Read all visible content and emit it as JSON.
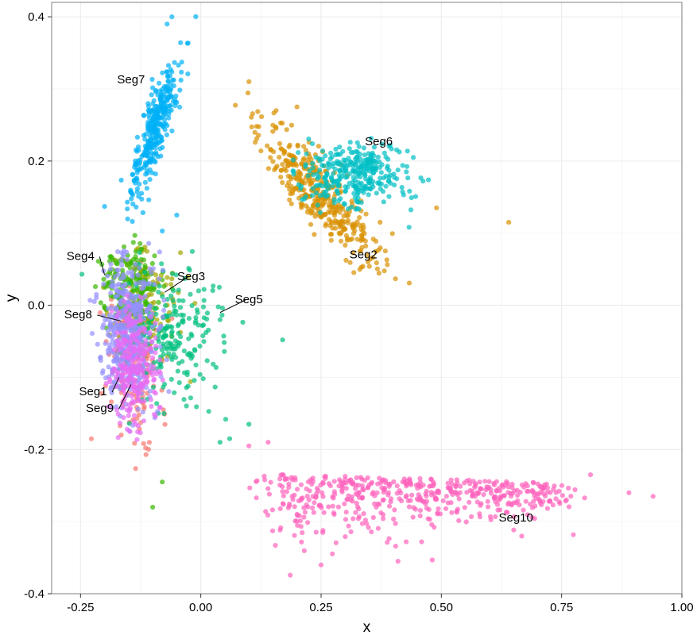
{
  "chart_data": {
    "type": "scatter",
    "title": "",
    "xlabel": "x",
    "ylabel": "y",
    "xlim": [
      -0.31,
      1.0
    ],
    "ylim": [
      -0.4,
      0.42
    ],
    "grid": true,
    "legend": "none",
    "x_ticks": [
      {
        "value": -0.25,
        "label": "-0.25"
      },
      {
        "value": 0.0,
        "label": "0.00"
      },
      {
        "value": 0.25,
        "label": "0.25"
      },
      {
        "value": 0.5,
        "label": "0.50"
      },
      {
        "value": 0.75,
        "label": "0.75"
      },
      {
        "value": 1.0,
        "label": "1.00"
      }
    ],
    "y_ticks": [
      {
        "value": -0.4,
        "label": "-0.4"
      },
      {
        "value": -0.2,
        "label": "-0.2"
      },
      {
        "value": 0.0,
        "label": "0.0"
      },
      {
        "value": 0.2,
        "label": "0.2"
      },
      {
        "value": 0.4,
        "label": "0.4"
      }
    ],
    "series": [
      {
        "name": "Seg1",
        "color": "#F8766D",
        "center": [
          -0.14,
          -0.085
        ],
        "spread": [
          0.03,
          0.05
        ],
        "n": 160,
        "seed": 11
      },
      {
        "name": "Seg2",
        "color": "#D89000",
        "center": [
          0.25,
          0.15
        ],
        "spread": [
          0.06,
          0.04
        ],
        "n": 380,
        "seed": 12
      },
      {
        "name": "Seg3",
        "color": "#A3A500",
        "center": [
          -0.12,
          0.0
        ],
        "spread": [
          0.04,
          0.04
        ],
        "n": 120,
        "seed": 13
      },
      {
        "name": "Seg4",
        "color": "#39B600",
        "center": [
          -0.15,
          0.02
        ],
        "spread": [
          0.03,
          0.03
        ],
        "n": 200,
        "seed": 14
      },
      {
        "name": "Seg5",
        "color": "#00BF7D",
        "center": [
          -0.06,
          -0.04
        ],
        "spread": [
          0.05,
          0.045
        ],
        "n": 220,
        "seed": 15
      },
      {
        "name": "Seg6",
        "color": "#00BFC4",
        "center": [
          0.32,
          0.18
        ],
        "spread": [
          0.055,
          0.022
        ],
        "n": 320,
        "seed": 16
      },
      {
        "name": "Seg7",
        "color": "#00B0F6",
        "center": [
          -0.095,
          0.245
        ],
        "spread": [
          0.022,
          0.045
        ],
        "n": 340,
        "seed": 17
      },
      {
        "name": "Seg8",
        "color": "#9590FF",
        "center": [
          -0.15,
          -0.035
        ],
        "spread": [
          0.028,
          0.05
        ],
        "n": 420,
        "seed": 18
      },
      {
        "name": "Seg9",
        "color": "#E76BF3",
        "center": [
          -0.14,
          -0.085
        ],
        "spread": [
          0.025,
          0.04
        ],
        "n": 240,
        "seed": 19
      },
      {
        "name": "Seg10",
        "color": "#FF62BC",
        "center": [
          0.45,
          -0.26
        ],
        "spread": [
          0.17,
          0.03
        ],
        "n": 500,
        "seed": 20
      }
    ],
    "extra_points": [
      {
        "series": "Seg2",
        "points": [
          [
            0.49,
            0.135
          ],
          [
            0.64,
            0.115
          ],
          [
            0.1,
            0.31
          ],
          [
            0.2,
            0.275
          ]
        ]
      },
      {
        "series": "Seg10",
        "points": [
          [
            0.1,
            -0.195
          ],
          [
            0.14,
            -0.19
          ],
          [
            0.89,
            -0.26
          ],
          [
            0.94,
            -0.265
          ],
          [
            0.76,
            -0.27
          ],
          [
            0.81,
            -0.235
          ],
          [
            0.25,
            -0.36
          ],
          [
            0.41,
            -0.355
          ]
        ]
      },
      {
        "series": "Seg5",
        "points": [
          [
            0.04,
            -0.02
          ],
          [
            0.1,
            -0.165
          ],
          [
            0.17,
            -0.048
          ],
          [
            0.04,
            -0.19
          ],
          [
            0.06,
            -0.185
          ]
        ]
      },
      {
        "series": "Seg7",
        "points": [
          [
            -0.2,
            0.137
          ],
          [
            -0.08,
            0.103
          ],
          [
            -0.05,
            0.125
          ],
          [
            -0.06,
            0.4
          ],
          [
            -0.07,
            0.39
          ]
        ]
      },
      {
        "series": "Seg4",
        "points": [
          [
            -0.1,
            -0.28
          ],
          [
            -0.08,
            -0.245
          ]
        ]
      }
    ],
    "annotations": [
      {
        "text": "Seg1",
        "x": -0.224,
        "y": -0.125,
        "anchor": "middle",
        "line_to": [
          -0.17,
          -0.1
        ]
      },
      {
        "text": "Seg2",
        "x": 0.338,
        "y": -0.65,
        "anchor": "middle",
        "label_y": 0.065
      },
      {
        "text": "Seg3",
        "x": -0.02,
        "y": 0.035,
        "anchor": "middle",
        "line_to": [
          -0.075,
          0.018
        ]
      },
      {
        "text": "Seg4",
        "x": -0.25,
        "y": 0.063,
        "anchor": "middle",
        "line_to": [
          -0.2,
          0.042
        ]
      },
      {
        "text": "Seg5",
        "x": 0.1,
        "y": 0.003,
        "anchor": "middle",
        "line_to": [
          0.04,
          -0.01
        ]
      },
      {
        "text": "Seg6",
        "x": 0.37,
        "y": 0.222,
        "anchor": "middle"
      },
      {
        "text": "Seg7",
        "x": -0.145,
        "y": 0.308,
        "anchor": "middle"
      },
      {
        "text": "Seg8",
        "x": -0.255,
        "y": -0.018,
        "anchor": "middle",
        "line_to": [
          -0.165,
          -0.022
        ]
      },
      {
        "text": "Seg9",
        "x": -0.21,
        "y": -0.148,
        "anchor": "middle",
        "line_to": [
          -0.145,
          -0.11
        ]
      },
      {
        "text": "Seg10",
        "x": 0.655,
        "y": -0.3,
        "anchor": "middle"
      }
    ],
    "panel_background": "#ffffff",
    "grid_color": "#ebebeb",
    "border_color": "#7f7f7f",
    "point_alpha": 0.7
  }
}
